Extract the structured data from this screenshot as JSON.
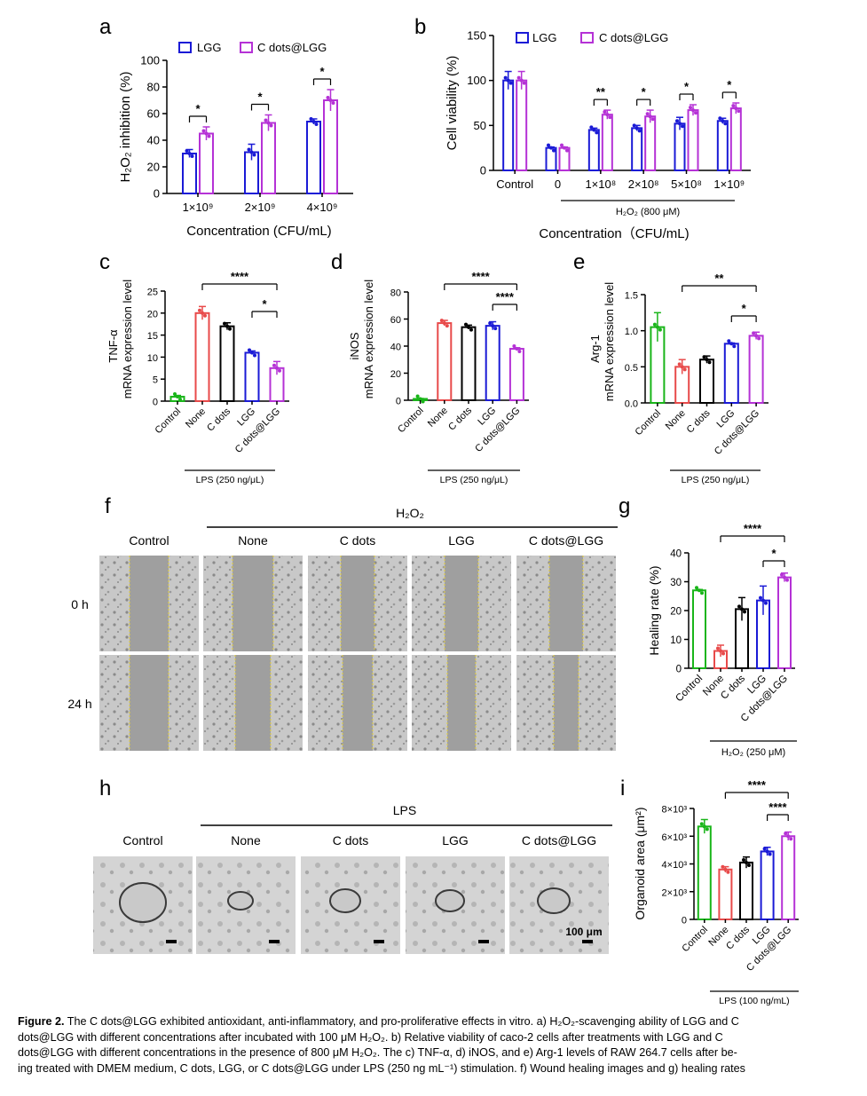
{
  "panel_labels": {
    "a": "a",
    "b": "b",
    "c": "c",
    "d": "d",
    "e": "e",
    "f": "f",
    "g": "g",
    "h": "h",
    "i": "i"
  },
  "colors": {
    "lgg": "#1a1ad6",
    "cdots_lgg": "#b532d6",
    "control": "#19b519",
    "none": "#e84a4a",
    "cdots": "#000000",
    "grid": "#000000"
  },
  "chart_data": [
    {
      "id": "a",
      "type": "bar",
      "legend": [
        "LGG",
        "C dots@LGG"
      ],
      "categories": [
        "1×10⁹",
        "2×10⁹",
        "4×10⁹"
      ],
      "series": [
        {
          "name": "LGG",
          "values": [
            30,
            31,
            54
          ],
          "err": [
            3,
            6,
            2
          ]
        },
        {
          "name": "C dots@LGG",
          "values": [
            45,
            53,
            70
          ],
          "err": [
            5,
            6,
            8
          ]
        }
      ],
      "ylabel": "H₂O₂ inhibition (%)",
      "xlabel": "Concentration (CFU/mL)",
      "ylim": [
        0,
        100
      ],
      "yticks": [
        "0",
        "20",
        "40",
        "60",
        "80",
        "100"
      ],
      "significance": [
        "*",
        "*",
        "*"
      ]
    },
    {
      "id": "b",
      "type": "bar",
      "legend": [
        "LGG",
        "C dots@LGG"
      ],
      "categories": [
        "Control",
        "0",
        "1×10⁸",
        "2×10⁸",
        "5×10⁸",
        "1×10⁹"
      ],
      "series": [
        {
          "name": "LGG",
          "values": [
            100,
            25,
            45,
            47,
            52,
            55
          ],
          "err": [
            10,
            1,
            2,
            3,
            7,
            3
          ]
        },
        {
          "name": "C dots@LGG",
          "values": [
            100,
            25,
            62,
            60,
            67,
            69
          ],
          "err": [
            10,
            1,
            5,
            7,
            6,
            6
          ]
        }
      ],
      "ylabel": "Cell viability (%)",
      "xlabel": "Concentration（CFU/mL)",
      "group_label": "H₂O₂ (800 μM)",
      "ylim": [
        0,
        150
      ],
      "yticks": [
        "0",
        "50",
        "100",
        "150"
      ],
      "significance": [
        "**",
        "*",
        "*",
        "*"
      ]
    },
    {
      "id": "c",
      "type": "bar",
      "categories": [
        "Control",
        "None",
        "C dots",
        "LGG",
        "C dots@LGG"
      ],
      "values": [
        1,
        20,
        17,
        11,
        7.5
      ],
      "err": [
        0.3,
        1.5,
        0.8,
        0.4,
        1.5
      ],
      "ylabel_top": "TNF-α",
      "ylabel": "mRNA expression level",
      "group_label": "LPS (250 ng/μL)",
      "ylim": [
        0,
        25
      ],
      "yticks": [
        "0",
        "5",
        "10",
        "15",
        "20",
        "25"
      ],
      "significance": [
        "****",
        "*"
      ]
    },
    {
      "id": "d",
      "type": "bar",
      "categories": [
        "Control",
        "None",
        "C dots",
        "LGG",
        "C dots@LGG"
      ],
      "values": [
        1,
        57,
        54,
        55,
        38
      ],
      "err": [
        0.3,
        2,
        1.5,
        3,
        0.8
      ],
      "ylabel_top": "iNOS",
      "ylabel": "mRNA expression level",
      "group_label": "LPS (250 ng/μL)",
      "ylim": [
        0,
        80
      ],
      "yticks": [
        "0",
        "20",
        "40",
        "60",
        "80"
      ],
      "significance": [
        "****",
        "****"
      ]
    },
    {
      "id": "e",
      "type": "bar",
      "categories": [
        "Control",
        "None",
        "C dots",
        "LGG",
        "C dots@LGG"
      ],
      "values": [
        1.05,
        0.5,
        0.6,
        0.82,
        0.93
      ],
      "err": [
        0.2,
        0.1,
        0.05,
        0.01,
        0.05
      ],
      "ylabel_top": "Arg-1",
      "ylabel": "mRNA expression level",
      "group_label": "LPS (250 ng/μL)",
      "ylim": [
        0,
        1.5
      ],
      "yticks": [
        "0.0",
        "0.5",
        "1.0",
        "1.5"
      ],
      "significance": [
        "**",
        "*"
      ]
    },
    {
      "id": "g",
      "type": "bar",
      "categories": [
        "Control",
        "None",
        "C dots",
        "LGG",
        "C dots@LGG"
      ],
      "values": [
        27,
        6,
        20.5,
        23.5,
        31.5
      ],
      "err": [
        0.3,
        2,
        4,
        5,
        1.5
      ],
      "ylabel": "Healing rate (%)",
      "group_label": "H₂O₂ (250 μM)",
      "ylim": [
        0,
        40
      ],
      "yticks": [
        "0",
        "10",
        "20",
        "30",
        "40"
      ],
      "significance": [
        "****",
        "*"
      ]
    },
    {
      "id": "i",
      "type": "bar",
      "categories": [
        "Control",
        "None",
        "C dots",
        "LGG",
        "C dots@LGG"
      ],
      "values": [
        6700,
        3600,
        4100,
        4900,
        6000
      ],
      "err": [
        500,
        200,
        400,
        300,
        300
      ],
      "ylabel": "Organoid area (μm²)",
      "group_label": "LPS (100 ng/mL)",
      "ylim": [
        0,
        8000
      ],
      "yticks": [
        "0",
        "2×10³",
        "4×10³",
        "6×10³",
        "8×10³"
      ],
      "significance": [
        "****",
        "****"
      ]
    }
  ],
  "panel_f": {
    "treatment": "H₂O₂",
    "columns": [
      "Control",
      "None",
      "C dots",
      "LGG",
      "C dots@LGG"
    ],
    "rows": [
      "0 h",
      "24 h"
    ]
  },
  "panel_h": {
    "treatment": "LPS",
    "columns": [
      "Control",
      "None",
      "C dots",
      "LGG",
      "C dots@LGG"
    ],
    "scale_bar": "100 μm"
  },
  "caption": {
    "label": "Figure 2.",
    "lines": [
      "The C dots@LGG exhibited antioxidant, anti-inflammatory, and pro-proliferative effects in vitro. a) H₂O₂-scavenging ability of LGG and C",
      "dots@LGG with different concentrations after incubated with 100 μM H₂O₂. b) Relative viability of caco-2 cells after treatments with LGG and C",
      "dots@LGG with different concentrations in the presence of 800 μM H₂O₂. The c) TNF-α, d) iNOS, and e) Arg-1 levels of RAW 264.7 cells after be-",
      "ing treated with DMEM medium, C dots, LGG, or C dots@LGG under LPS (250 ng mL⁻¹) stimulation. f) Wound healing images and g) healing rates"
    ]
  }
}
